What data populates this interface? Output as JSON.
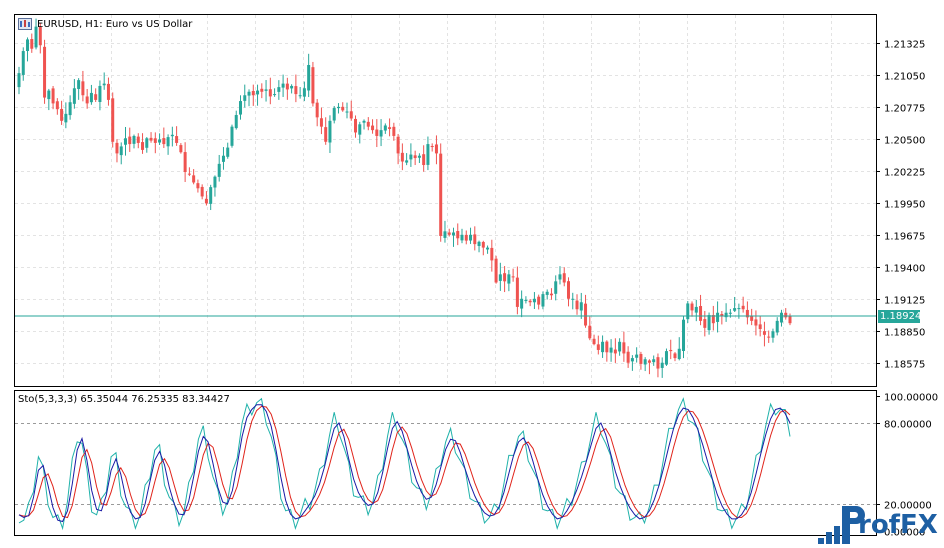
{
  "price_panel": {
    "title": "EURUSD, H1:  Euro vs US Dollar",
    "last_price": "1.18924",
    "ticks": [
      "1.21325",
      "1.21050",
      "1.20775",
      "1.20500",
      "1.20225",
      "1.19950",
      "1.19675",
      "1.19400",
      "1.19125",
      "1.18850",
      "1.18575"
    ]
  },
  "stoch_panel": {
    "title": "Sto(5,3,3,3) 65.35044 76.25335 83.34427",
    "ticks": [
      "100.00000",
      "80.00000",
      "20.00000",
      "0.00000"
    ]
  },
  "watermark": {
    "text": "rofFX",
    "letter": "P"
  },
  "colors": {
    "bull": "#26a69a",
    "bear": "#ef5350",
    "grid": "#e3e3e3",
    "line_level": "#26a69a",
    "stoch_main": "#1a1aa6",
    "stoch_signal": "#e0241b",
    "stoch_fast": "#20b2aa"
  },
  "chart_data": [
    {
      "type": "candlestick",
      "title": "EURUSD, H1:  Euro vs US Dollar",
      "ylim": [
        1.1838,
        1.2157
      ],
      "close": [
        1.2107,
        1.2126,
        1.2136,
        1.2128,
        1.2147,
        1.2131,
        1.2086,
        1.2092,
        1.2081,
        1.2076,
        1.2066,
        1.2072,
        1.2082,
        1.2094,
        1.2101,
        1.2088,
        1.2081,
        1.209,
        1.2084,
        1.2096,
        1.2098,
        1.2084,
        1.2048,
        1.2038,
        1.2044,
        1.2051,
        1.2046,
        1.2053,
        1.2047,
        1.2041,
        1.2051,
        1.2049,
        1.2047,
        1.205,
        1.2046,
        1.2052,
        1.2054,
        1.2047,
        1.2039,
        1.2022,
        1.202,
        1.2013,
        1.2008,
        1.2001,
        1.1995,
        1.2009,
        1.2018,
        1.2029,
        1.2036,
        1.2043,
        1.2061,
        1.2071,
        1.2083,
        1.2088,
        1.2091,
        1.2088,
        1.2092,
        1.2091,
        1.2093,
        1.2087,
        1.2089,
        1.2095,
        1.2098,
        1.2093,
        1.2096,
        1.2089,
        1.2088,
        1.2094,
        1.2114,
        1.2081,
        1.2069,
        1.2061,
        1.2048,
        1.2066,
        1.2077,
        1.2078,
        1.2075,
        1.2074,
        1.2068,
        1.2056,
        1.2063,
        1.2066,
        1.2061,
        1.2058,
        1.2053,
        1.2058,
        1.2062,
        1.2059,
        1.2053,
        1.2038,
        1.2031,
        1.2032,
        1.2037,
        1.2034,
        1.2036,
        1.2028,
        1.2046,
        1.2044,
        1.2038,
        1.1967,
        1.1971,
        1.1968,
        1.197,
        1.1965,
        1.1968,
        1.1963,
        1.1968,
        1.196,
        1.1962,
        1.1957,
        1.1957,
        1.1946,
        1.1927,
        1.1934,
        1.1928,
        1.1934,
        1.1932,
        1.1906,
        1.1913,
        1.1912,
        1.191,
        1.1913,
        1.1908,
        1.1917,
        1.1919,
        1.1916,
        1.1928,
        1.1934,
        1.1927,
        1.1913,
        1.1913,
        1.1904,
        1.191,
        1.189,
        1.1879,
        1.1874,
        1.1869,
        1.1876,
        1.1867,
        1.1871,
        1.1866,
        1.1876,
        1.1866,
        1.1858,
        1.1862,
        1.1865,
        1.1857,
        1.1861,
        1.1858,
        1.1861,
        1.1853,
        1.1858,
        1.1868,
        1.1868,
        1.1862,
        1.187,
        1.1895,
        1.1909,
        1.1903,
        1.1906,
        1.1894,
        1.1888,
        1.1899,
        1.1892,
        1.1901,
        1.1898,
        1.1901,
        1.1901,
        1.1905,
        1.1905,
        1.1904,
        1.1897,
        1.1894,
        1.189,
        1.1887,
        1.1882,
        1.188,
        1.1885,
        1.1894,
        1.1901,
        1.1897,
        1.1892
      ],
      "labels": [
        {
          "side": "right",
          "text": "1.18924"
        }
      ]
    },
    {
      "type": "line",
      "title": "Sto(5,3,3,3) 65.35044 76.25335 83.34427",
      "ylim": [
        0,
        100
      ],
      "levels": [
        20,
        80
      ],
      "series": [
        {
          "values": [
            12,
            8,
            15,
            35,
            55,
            42,
            25,
            10,
            6,
            8,
            22,
            48,
            72,
            65,
            40,
            20,
            12,
            18,
            35,
            55,
            52,
            32,
            18,
            10,
            8,
            12,
            28,
            45,
            60,
            58,
            40,
            25,
            15,
            10,
            14,
            30,
            50,
            68,
            72,
            60,
            40,
            25,
            18,
            22,
            38,
            60,
            80,
            88,
            92,
            95,
            92,
            85,
            70,
            50,
            30,
            15,
            10,
            8,
            12,
            18,
            22,
            30,
            40,
            55,
            70,
            82,
            78,
            62,
            45,
            32,
            25,
            20,
            18,
            22,
            35,
            52,
            70,
            82,
            80,
            68,
            55,
            42,
            32,
            25,
            22,
            28,
            40,
            55,
            66,
            70,
            64,
            52,
            40,
            30,
            22,
            15,
            12,
            10,
            14,
            22,
            35,
            50,
            62,
            70,
            68,
            58,
            45,
            32,
            22,
            15,
            10,
            8,
            12,
            18,
            25,
            35,
            45,
            58,
            70,
            82,
            78,
            65,
            50,
            38,
            28,
            20,
            14,
            10,
            8,
            12,
            18,
            28,
            40,
            55,
            70,
            82,
            90,
            92,
            88,
            80,
            70,
            58,
            45,
            32,
            22,
            15,
            10,
            8,
            10,
            14,
            22,
            35,
            50,
            65,
            78,
            88,
            92,
            90,
            84,
            76
          ]
        }
      ]
    }
  ]
}
